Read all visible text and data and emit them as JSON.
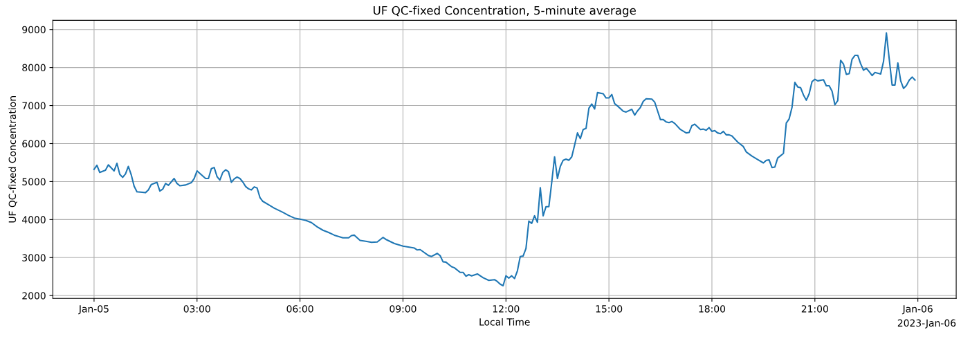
{
  "chart_data": {
    "type": "line",
    "title": "UF QC-fixed Concentration, 5-minute average",
    "xlabel": "Local Time",
    "ylabel": "UF QC-fixed Concentration",
    "annotations": [
      "2023-Jan-06"
    ],
    "xlim": [
      "2023-01-04T22:48",
      "2023-01-06T01:07"
    ],
    "xticks": [
      {
        "value": "2023-01-05T00:00",
        "label": "Jan-05"
      },
      {
        "value": "2023-01-05T03:00",
        "label": "03:00"
      },
      {
        "value": "2023-01-05T06:00",
        "label": "06:00"
      },
      {
        "value": "2023-01-05T09:00",
        "label": "09:00"
      },
      {
        "value": "2023-01-05T12:00",
        "label": "12:00"
      },
      {
        "value": "2023-01-05T15:00",
        "label": "15:00"
      },
      {
        "value": "2023-01-05T18:00",
        "label": "18:00"
      },
      {
        "value": "2023-01-05T21:00",
        "label": "21:00"
      },
      {
        "value": "2023-01-06T00:00",
        "label": "Jan-06"
      }
    ],
    "ylim": [
      1928,
      9242
    ],
    "yticks": [
      2000,
      3000,
      4000,
      5000,
      6000,
      7000,
      8000,
      9000
    ],
    "grid": true,
    "marker": "none",
    "line_style": "solid",
    "series": [
      {
        "color": "#1f77b4",
        "x": [
          "2023-01-05T00:00",
          "2023-01-05T00:05",
          "2023-01-05T00:10",
          "2023-01-05T00:20",
          "2023-01-05T00:25",
          "2023-01-05T00:35",
          "2023-01-05T00:40",
          "2023-01-05T00:45",
          "2023-01-05T00:50",
          "2023-01-05T00:55",
          "2023-01-05T01:00",
          "2023-01-05T01:05",
          "2023-01-05T01:10",
          "2023-01-05T01:15",
          "2023-01-05T01:30",
          "2023-01-05T01:35",
          "2023-01-05T01:40",
          "2023-01-05T01:50",
          "2023-01-05T01:55",
          "2023-01-05T02:00",
          "2023-01-05T02:05",
          "2023-01-05T02:10",
          "2023-01-05T02:20",
          "2023-01-05T02:25",
          "2023-01-05T02:30",
          "2023-01-05T02:40",
          "2023-01-05T02:50",
          "2023-01-05T02:55",
          "2023-01-05T03:00",
          "2023-01-05T03:15",
          "2023-01-05T03:20",
          "2023-01-05T03:25",
          "2023-01-05T03:30",
          "2023-01-05T03:35",
          "2023-01-05T03:40",
          "2023-01-05T03:45",
          "2023-01-05T03:50",
          "2023-01-05T03:55",
          "2023-01-05T04:00",
          "2023-01-05T04:05",
          "2023-01-05T04:10",
          "2023-01-05T04:15",
          "2023-01-05T04:20",
          "2023-01-05T04:25",
          "2023-01-05T04:30",
          "2023-01-05T04:35",
          "2023-01-05T04:40",
          "2023-01-05T04:45",
          "2023-01-05T04:50",
          "2023-01-05T04:55",
          "2023-01-05T05:05",
          "2023-01-05T05:15",
          "2023-01-05T05:30",
          "2023-01-05T05:40",
          "2023-01-05T05:50",
          "2023-01-05T06:00",
          "2023-01-05T06:10",
          "2023-01-05T06:20",
          "2023-01-05T06:30",
          "2023-01-05T06:40",
          "2023-01-05T06:50",
          "2023-01-05T07:00",
          "2023-01-05T07:15",
          "2023-01-05T07:25",
          "2023-01-05T07:30",
          "2023-01-05T07:35",
          "2023-01-05T07:45",
          "2023-01-05T07:55",
          "2023-01-05T08:05",
          "2023-01-05T08:15",
          "2023-01-05T08:25",
          "2023-01-05T08:30",
          "2023-01-05T08:45",
          "2023-01-05T09:00",
          "2023-01-05T09:20",
          "2023-01-05T09:25",
          "2023-01-05T09:30",
          "2023-01-05T09:45",
          "2023-01-05T09:50",
          "2023-01-05T10:00",
          "2023-01-05T10:05",
          "2023-01-05T10:10",
          "2023-01-05T10:15",
          "2023-01-05T10:25",
          "2023-01-05T10:30",
          "2023-01-05T10:40",
          "2023-01-05T10:45",
          "2023-01-05T10:50",
          "2023-01-05T10:55",
          "2023-01-05T11:00",
          "2023-01-05T11:10",
          "2023-01-05T11:20",
          "2023-01-05T11:30",
          "2023-01-05T11:40",
          "2023-01-05T11:45",
          "2023-01-05T11:50",
          "2023-01-05T11:55",
          "2023-01-05T12:00",
          "2023-01-05T12:05",
          "2023-01-05T12:10",
          "2023-01-05T12:15",
          "2023-01-05T12:20",
          "2023-01-05T12:25",
          "2023-01-05T12:30",
          "2023-01-05T12:35",
          "2023-01-05T12:40",
          "2023-01-05T12:45",
          "2023-01-05T12:50",
          "2023-01-05T12:55",
          "2023-01-05T13:00",
          "2023-01-05T13:05",
          "2023-01-05T13:10",
          "2023-01-05T13:15",
          "2023-01-05T13:20",
          "2023-01-05T13:25",
          "2023-01-05T13:30",
          "2023-01-05T13:35",
          "2023-01-05T13:40",
          "2023-01-05T13:45",
          "2023-01-05T13:50",
          "2023-01-05T13:55",
          "2023-01-05T14:00",
          "2023-01-05T14:05",
          "2023-01-05T14:10",
          "2023-01-05T14:15",
          "2023-01-05T14:20",
          "2023-01-05T14:25",
          "2023-01-05T14:30",
          "2023-01-05T14:35",
          "2023-01-05T14:40",
          "2023-01-05T14:50",
          "2023-01-05T14:55",
          "2023-01-05T15:00",
          "2023-01-05T15:05",
          "2023-01-05T15:10",
          "2023-01-05T15:15",
          "2023-01-05T15:25",
          "2023-01-05T15:30",
          "2023-01-05T15:40",
          "2023-01-05T15:45",
          "2023-01-05T15:50",
          "2023-01-05T15:55",
          "2023-01-05T16:00",
          "2023-01-05T16:05",
          "2023-01-05T16:15",
          "2023-01-05T16:20",
          "2023-01-05T16:25",
          "2023-01-05T16:30",
          "2023-01-05T16:35",
          "2023-01-05T16:40",
          "2023-01-05T16:45",
          "2023-01-05T16:50",
          "2023-01-05T16:55",
          "2023-01-05T17:05",
          "2023-01-05T17:15",
          "2023-01-05T17:20",
          "2023-01-05T17:25",
          "2023-01-05T17:30",
          "2023-01-05T17:40",
          "2023-01-05T17:45",
          "2023-01-05T17:50",
          "2023-01-05T17:55",
          "2023-01-05T18:00",
          "2023-01-05T18:05",
          "2023-01-05T18:10",
          "2023-01-05T18:15",
          "2023-01-05T18:20",
          "2023-01-05T18:25",
          "2023-01-05T18:30",
          "2023-01-05T18:35",
          "2023-01-05T18:45",
          "2023-01-05T18:55",
          "2023-01-05T19:00",
          "2023-01-05T19:10",
          "2023-01-05T19:20",
          "2023-01-05T19:30",
          "2023-01-05T19:35",
          "2023-01-05T19:40",
          "2023-01-05T19:45",
          "2023-01-05T19:50",
          "2023-01-05T19:55",
          "2023-01-05T20:00",
          "2023-01-05T20:05",
          "2023-01-05T20:10",
          "2023-01-05T20:15",
          "2023-01-05T20:20",
          "2023-01-05T20:25",
          "2023-01-05T20:30",
          "2023-01-05T20:35",
          "2023-01-05T20:40",
          "2023-01-05T20:45",
          "2023-01-05T20:50",
          "2023-01-05T20:55",
          "2023-01-05T21:00",
          "2023-01-05T21:05",
          "2023-01-05T21:15",
          "2023-01-05T21:20",
          "2023-01-05T21:25",
          "2023-01-05T21:30",
          "2023-01-05T21:35",
          "2023-01-05T21:40",
          "2023-01-05T21:45",
          "2023-01-05T21:50",
          "2023-01-05T21:55",
          "2023-01-05T22:00",
          "2023-01-05T22:05",
          "2023-01-05T22:10",
          "2023-01-05T22:15",
          "2023-01-05T22:20",
          "2023-01-05T22:25",
          "2023-01-05T22:30",
          "2023-01-05T22:35",
          "2023-01-05T22:40",
          "2023-01-05T22:45",
          "2023-01-05T22:55",
          "2023-01-05T23:00",
          "2023-01-05T23:05",
          "2023-01-05T23:10",
          "2023-01-05T23:15",
          "2023-01-05T23:20",
          "2023-01-05T23:25",
          "2023-01-05T23:30",
          "2023-01-05T23:35",
          "2023-01-05T23:40",
          "2023-01-05T23:45",
          "2023-01-05T23:50",
          "2023-01-05T23:55"
        ],
        "values": [
          5320,
          5430,
          5240,
          5300,
          5440,
          5280,
          5480,
          5190,
          5110,
          5200,
          5400,
          5180,
          4880,
          4730,
          4710,
          4780,
          4920,
          4980,
          4750,
          4800,
          4950,
          4900,
          5080,
          4950,
          4890,
          4910,
          4970,
          5080,
          5280,
          5080,
          5080,
          5340,
          5370,
          5130,
          5040,
          5240,
          5310,
          5260,
          4980,
          5070,
          5120,
          5080,
          4990,
          4870,
          4810,
          4780,
          4860,
          4830,
          4580,
          4480,
          4390,
          4300,
          4190,
          4110,
          4040,
          4010,
          3980,
          3920,
          3810,
          3720,
          3660,
          3590,
          3520,
          3520,
          3580,
          3590,
          3450,
          3430,
          3400,
          3410,
          3530,
          3480,
          3370,
          3300,
          3250,
          3200,
          3210,
          3050,
          3030,
          3110,
          3050,
          2890,
          2880,
          2760,
          2730,
          2610,
          2610,
          2510,
          2550,
          2520,
          2570,
          2470,
          2400,
          2420,
          2370,
          2300,
          2260,
          2520,
          2460,
          2520,
          2450,
          2650,
          3030,
          3040,
          3240,
          3960,
          3900,
          4100,
          3930,
          4840,
          4100,
          4340,
          4340,
          4980,
          5650,
          5080,
          5400,
          5560,
          5590,
          5560,
          5650,
          5960,
          6280,
          6130,
          6370,
          6400,
          6930,
          7040,
          6910,
          7340,
          7310,
          7200,
          7200,
          7290,
          7050,
          6990,
          6850,
          6830,
          6900,
          6750,
          6860,
          6950,
          7110,
          7180,
          7170,
          7090,
          6860,
          6630,
          6630,
          6570,
          6550,
          6580,
          6530,
          6370,
          6280,
          6290,
          6470,
          6510,
          6370,
          6380,
          6350,
          6420,
          6320,
          6340,
          6280,
          6260,
          6320,
          6230,
          6230,
          6200,
          6040,
          5920,
          5780,
          5670,
          5580,
          5490,
          5560,
          5570,
          5370,
          5380,
          5620,
          5680,
          5740,
          6540,
          6650,
          6950,
          7610,
          7490,
          7470,
          7280,
          7140,
          7310,
          7630,
          7690,
          7650,
          7680,
          7520,
          7520,
          7380,
          7020,
          7130,
          8190,
          8090,
          7820,
          7840,
          8220,
          8320,
          8320,
          8100,
          7930,
          7980,
          7890,
          7790,
          7870,
          7830,
          8160,
          8910,
          8220,
          7540,
          7540,
          8120,
          7650,
          7450,
          7530,
          7670,
          7750,
          7670
        ]
      }
    ]
  }
}
